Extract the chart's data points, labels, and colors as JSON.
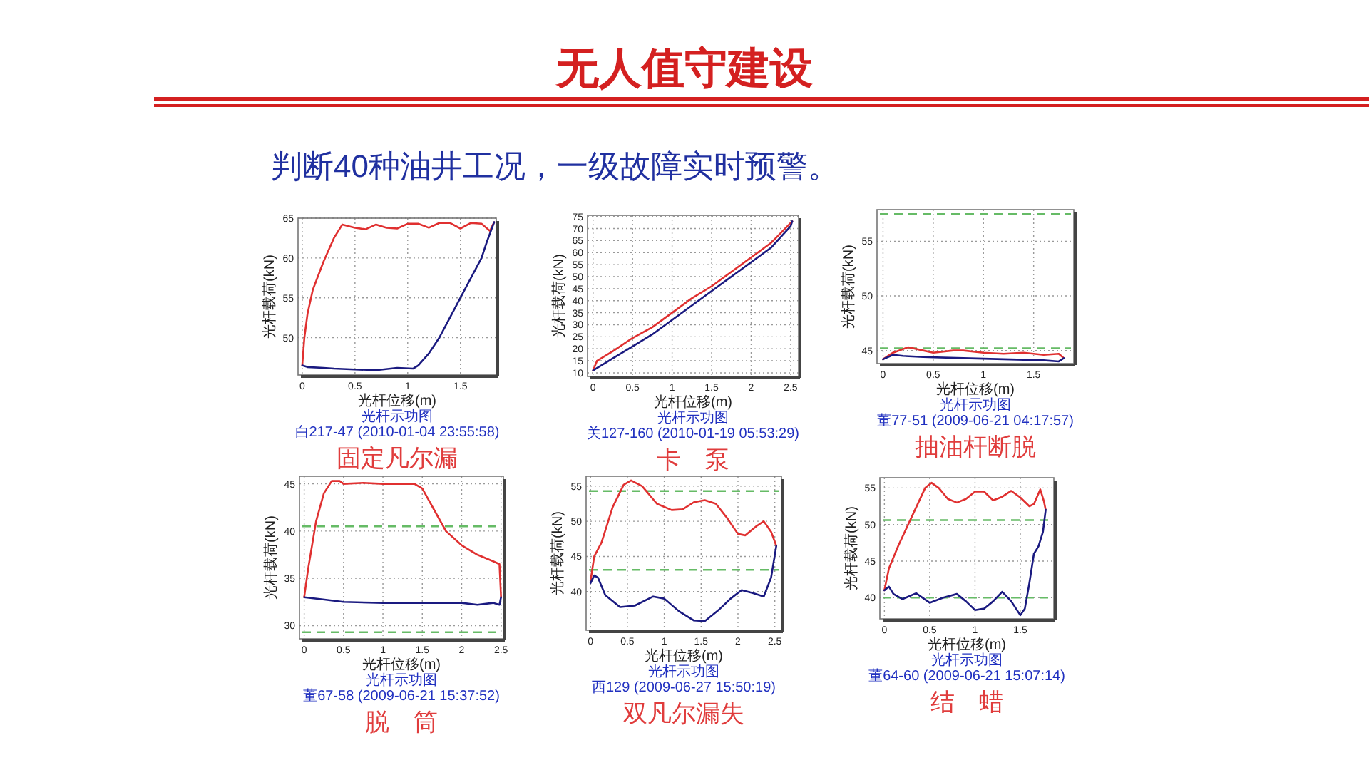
{
  "chart_data": [
    {
      "type": "other",
      "title": "无人值守建设",
      "subtitle": "判断40种油井工况，一级故障实时预警。"
    },
    {
      "type": "line",
      "title": "光杆示功图",
      "subtitle": "白217-47 (2010-01-04 23:55:58)",
      "annotations": [
        "固定凡尔漏"
      ],
      "xlabel": "光杆位移(m)",
      "ylabel": "光杆载荷(kN)",
      "xlim": [
        -0.04,
        1.84
      ],
      "ylim": [
        45.3,
        65
      ],
      "xticks": [
        0,
        0.5,
        1,
        1.5
      ],
      "yticks": [
        50,
        55,
        60,
        65
      ],
      "grid": true,
      "series": [
        {
          "color": "#e03030",
          "x": [
            0,
            0.02,
            0.05,
            0.1,
            0.2,
            0.3,
            0.38,
            0.5,
            0.6,
            0.7,
            0.8,
            0.9,
            1.0,
            1.1,
            1.2,
            1.3,
            1.4,
            1.5,
            1.6,
            1.7,
            1.78,
            1.82
          ],
          "values": [
            46.5,
            50,
            53,
            56,
            59.5,
            62.5,
            64.2,
            63.8,
            63.6,
            64.2,
            63.8,
            63.7,
            64.3,
            64.3,
            63.8,
            64.4,
            64.4,
            63.7,
            64.4,
            64.3,
            63.4,
            64.5
          ]
        },
        {
          "color": "#1a1a80",
          "x": [
            1.82,
            1.75,
            1.7,
            1.6,
            1.5,
            1.4,
            1.3,
            1.2,
            1.1,
            1.05,
            0.9,
            0.7,
            0.5,
            0.3,
            0.2,
            0.05,
            0
          ],
          "values": [
            64.5,
            62,
            60,
            57.5,
            55,
            52.5,
            50,
            48,
            46.5,
            46.1,
            46.2,
            45.9,
            46.0,
            46.1,
            46.2,
            46.3,
            46.5
          ]
        }
      ]
    },
    {
      "type": "line",
      "title": "光杆示功图",
      "subtitle": "关127-160 (2010-01-19 05:53:29)",
      "annotations": [
        "卡　泵"
      ],
      "xlabel": "光杆位移(m)",
      "ylabel": "光杆载荷(kN)",
      "xlim": [
        -0.07,
        2.6
      ],
      "ylim": [
        8.5,
        75.5
      ],
      "xticks": [
        0,
        0.5,
        1,
        1.5,
        2,
        2.5
      ],
      "yticks": [
        10,
        15,
        20,
        25,
        30,
        35,
        40,
        45,
        50,
        55,
        60,
        65,
        70,
        75
      ],
      "grid": true,
      "series": [
        {
          "color": "#e03030",
          "x": [
            0,
            0.05,
            0.25,
            0.5,
            0.75,
            1,
            1.25,
            1.5,
            1.75,
            2,
            2.25,
            2.52
          ],
          "values": [
            11,
            15,
            19,
            24.5,
            29,
            35,
            41,
            46,
            52,
            58,
            64,
            73
          ]
        },
        {
          "color": "#1a1a80",
          "x": [
            2.52,
            2.5,
            2.25,
            2,
            1.75,
            1.5,
            1.25,
            1,
            0.75,
            0.5,
            0.25,
            0.05,
            0
          ],
          "values": [
            73,
            71,
            62,
            56,
            50,
            44,
            38,
            32,
            26,
            21,
            16,
            12,
            11
          ]
        }
      ]
    },
    {
      "type": "line",
      "title": "光杆示功图",
      "subtitle": "董77-51 (2009-06-21 04:17:57)",
      "annotations": [
        "抽油杆断脱"
      ],
      "xlabel": "光杆位移(m)",
      "ylabel": "光杆载荷(kN)",
      "xlim": [
        -0.06,
        1.9
      ],
      "ylim": [
        43.8,
        57.9
      ],
      "xticks": [
        0,
        0.5,
        1,
        1.5
      ],
      "yticks": [
        45,
        50,
        55
      ],
      "grid": true,
      "ref_lines": [
        {
          "axis": "y",
          "value": 57.5,
          "color": "#66bb66",
          "line_style": "dashed"
        },
        {
          "axis": "y",
          "value": 45.2,
          "color": "#66bb66",
          "line_style": "dashed"
        }
      ],
      "series": [
        {
          "color": "#e03030",
          "x": [
            0,
            0.1,
            0.25,
            0.4,
            0.5,
            0.7,
            0.8,
            1,
            1.2,
            1.4,
            1.6,
            1.75,
            1.8
          ],
          "values": [
            44.2,
            44.8,
            45.3,
            45.0,
            44.8,
            45.0,
            45.0,
            44.8,
            44.7,
            44.8,
            44.6,
            44.7,
            44.3
          ]
        },
        {
          "color": "#1a1a80",
          "x": [
            1.8,
            1.75,
            1.6,
            1.2,
            0.8,
            0.4,
            0.2,
            0.1,
            0
          ],
          "values": [
            44.3,
            44.0,
            44.1,
            44.2,
            44.3,
            44.4,
            44.5,
            44.6,
            44.2
          ]
        }
      ]
    },
    {
      "type": "line",
      "title": "光杆示功图",
      "subtitle": "董67-58 (2009-06-21 15:37:52)",
      "annotations": [
        "脱　筒"
      ],
      "xlabel": "光杆位移(m)",
      "ylabel": "光杆载荷(kN)",
      "xlim": [
        -0.06,
        2.53
      ],
      "ylim": [
        28.6,
        45.8
      ],
      "xticks": [
        0,
        0.5,
        1,
        1.5,
        2,
        2.5
      ],
      "yticks": [
        30,
        35,
        40,
        45
      ],
      "grid": true,
      "ref_lines": [
        {
          "axis": "y",
          "value": 40.5,
          "color": "#66bb66",
          "line_style": "dashed"
        },
        {
          "axis": "y",
          "value": 29.3,
          "color": "#66bb66",
          "line_style": "dashed"
        }
      ],
      "series": [
        {
          "color": "#e03030",
          "x": [
            0,
            0.05,
            0.15,
            0.25,
            0.35,
            0.45,
            0.5,
            0.75,
            1,
            1.25,
            1.4,
            1.5,
            1.6,
            1.7,
            1.8,
            2,
            2.2,
            2.4,
            2.48,
            2.5
          ],
          "values": [
            33,
            36,
            41,
            44,
            45.3,
            45.3,
            45,
            45.1,
            45,
            45,
            45,
            44.5,
            43,
            41.5,
            40,
            38.5,
            37.5,
            36.8,
            36.5,
            33
          ]
        },
        {
          "color": "#1a1a80",
          "x": [
            2.5,
            2.48,
            2.4,
            2.2,
            2,
            1.5,
            1,
            0.5,
            0.2,
            0
          ],
          "values": [
            33,
            32.2,
            32.4,
            32.2,
            32.4,
            32.4,
            32.4,
            32.5,
            32.8,
            33
          ]
        }
      ]
    },
    {
      "type": "line",
      "title": "光杆示功图",
      "subtitle": "西129 (2009-06-27 15:50:19)",
      "annotations": [
        "双凡尔漏失"
      ],
      "xlabel": "光杆位移(m)",
      "ylabel": "光杆载荷(kN)",
      "xlim": [
        -0.06,
        2.59
      ],
      "ylim": [
        34.5,
        56.4
      ],
      "xticks": [
        0,
        0.5,
        1,
        1.5,
        2,
        2.5
      ],
      "yticks": [
        40,
        45,
        50,
        55
      ],
      "grid": true,
      "ref_lines": [
        {
          "axis": "y",
          "value": 54.3,
          "color": "#66bb66",
          "line_style": "dashed"
        },
        {
          "axis": "y",
          "value": 43.1,
          "color": "#66bb66",
          "line_style": "dashed"
        }
      ],
      "series": [
        {
          "color": "#e03030",
          "x": [
            0,
            0.05,
            0.15,
            0.3,
            0.45,
            0.55,
            0.7,
            0.9,
            1.1,
            1.25,
            1.4,
            1.55,
            1.7,
            1.85,
            2.0,
            2.1,
            2.25,
            2.35,
            2.45,
            2.52
          ],
          "values": [
            41.5,
            45,
            47,
            52,
            55.2,
            55.8,
            55,
            52.5,
            51.6,
            51.7,
            52.7,
            53,
            52.5,
            50.5,
            48.2,
            48,
            49.3,
            50,
            48.5,
            46.5
          ]
        },
        {
          "color": "#1a1a80",
          "x": [
            2.52,
            2.45,
            2.35,
            2.2,
            2.05,
            1.9,
            1.75,
            1.55,
            1.4,
            1.2,
            1.0,
            0.85,
            0.6,
            0.4,
            0.2,
            0.1,
            0.05,
            0
          ],
          "values": [
            46.5,
            42,
            39.3,
            39.8,
            40.2,
            39,
            37.5,
            35.8,
            35.9,
            37.2,
            39,
            39.3,
            38,
            37.8,
            39.5,
            42,
            42.3,
            41.2
          ]
        }
      ]
    },
    {
      "type": "line",
      "title": "光杆示功图",
      "subtitle": "董64-60 (2009-06-21 15:07:14)",
      "annotations": [
        "结　蜡"
      ],
      "xlabel": "光杆位移(m)",
      "ylabel": "光杆载荷(kN)",
      "xlim": [
        -0.05,
        1.87
      ],
      "ylim": [
        37.1,
        56.4
      ],
      "xticks": [
        0,
        0.5,
        1,
        1.5
      ],
      "yticks": [
        40,
        45,
        50,
        55
      ],
      "grid": true,
      "ref_lines": [
        {
          "axis": "y",
          "value": 50.6,
          "color": "#66bb66",
          "line_style": "dashed"
        },
        {
          "axis": "y",
          "value": 40,
          "color": "#66bb66",
          "line_style": "dashed"
        }
      ],
      "series": [
        {
          "color": "#e03030",
          "x": [
            0,
            0.05,
            0.15,
            0.3,
            0.45,
            0.52,
            0.6,
            0.7,
            0.8,
            0.9,
            1.0,
            1.1,
            1.2,
            1.3,
            1.4,
            1.5,
            1.6,
            1.65,
            1.72,
            1.76,
            1.78
          ],
          "values": [
            41,
            44,
            47,
            51,
            55,
            55.7,
            55,
            53.5,
            53,
            53.5,
            54.5,
            54.5,
            53.3,
            53.8,
            54.6,
            53.7,
            52.5,
            52.8,
            54.8,
            53.2,
            52
          ]
        },
        {
          "color": "#1a1a80",
          "x": [
            1.78,
            1.75,
            1.7,
            1.65,
            1.6,
            1.55,
            1.5,
            1.4,
            1.3,
            1.2,
            1.1,
            1.0,
            0.9,
            0.8,
            0.65,
            0.5,
            0.35,
            0.2,
            0.1,
            0.05,
            0
          ],
          "values": [
            52,
            49,
            47,
            46,
            42,
            38.5,
            37.6,
            39.5,
            40.8,
            39.5,
            38.5,
            38.3,
            39.5,
            40.5,
            40,
            39.3,
            40.6,
            39.8,
            40.5,
            41.5,
            41
          ]
        }
      ]
    }
  ]
}
